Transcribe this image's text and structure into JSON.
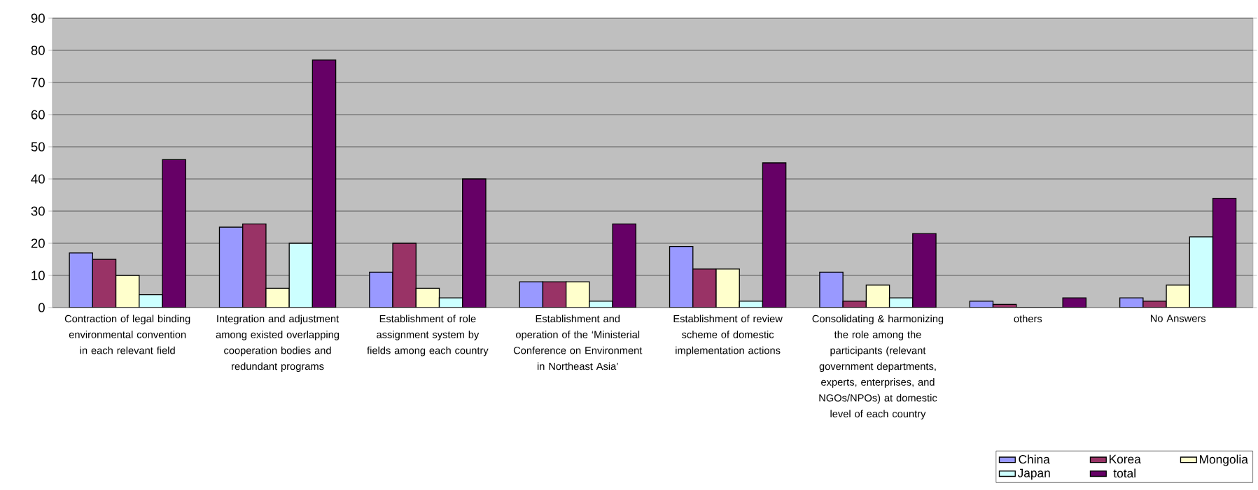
{
  "chart_data": {
    "type": "bar",
    "categories": [
      "Contraction of legal binding environmental convention in each relevant field",
      "Integration and adjustment among existed overlapping cooperation bodies and redundant programs",
      "Establishment of role assignment system by fields among each country",
      "Establishment and operation of the ‘Ministerial Conference on Environment in Northeast Asia’",
      "Establishment of review scheme of domestic implementation actions",
      "Consolidating & harmonizing the role among the participants (relevant government departments, experts, enterprises, and NGOs/NPOs) at domestic level of each country",
      "others",
      "No Answers"
    ],
    "series": [
      {
        "name": "China",
        "color": "#9999ff",
        "values": [
          17,
          25,
          11,
          8,
          19,
          11,
          2,
          3
        ]
      },
      {
        "name": "Korea",
        "color": "#993366",
        "values": [
          15,
          26,
          20,
          8,
          12,
          2,
          1,
          2
        ]
      },
      {
        "name": "Mongolia",
        "color": "#ffffcc",
        "values": [
          10,
          6,
          6,
          8,
          12,
          7,
          0,
          7
        ]
      },
      {
        "name": "Japan",
        "color": "#ccffff",
        "values": [
          4,
          20,
          3,
          2,
          2,
          3,
          0,
          22
        ]
      },
      {
        "name": "total",
        "color": "#660066",
        "values": [
          46,
          77,
          40,
          26,
          45,
          23,
          3,
          34
        ]
      }
    ],
    "ylim": [
      0,
      90
    ],
    "yticks": [
      0,
      10,
      20,
      30,
      40,
      50,
      60,
      70,
      80,
      90
    ],
    "grid": "y",
    "legend": "bottom right"
  }
}
